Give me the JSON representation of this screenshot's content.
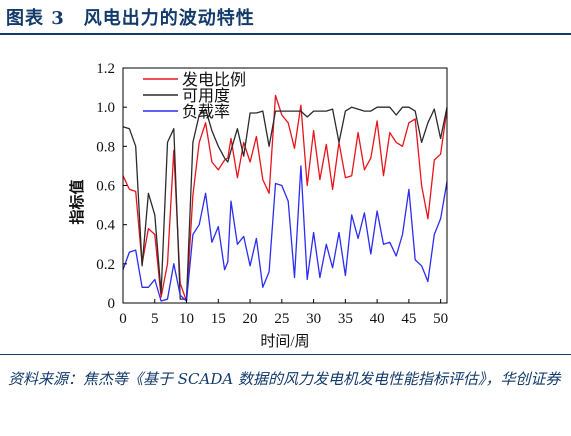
{
  "figure": {
    "title": "图表 3　风电出力的波动特性",
    "source": "资料来源：焦杰等《基于 SCADA 数据的风力发电机发电性能指标评估》，华创证券"
  },
  "chart_data": {
    "type": "line",
    "xlabel": "时间/周",
    "ylabel": "指标值",
    "xlim": [
      0,
      51
    ],
    "ylim": [
      0,
      1.2
    ],
    "xticks": [
      0,
      5,
      10,
      15,
      20,
      25,
      30,
      35,
      40,
      45,
      50
    ],
    "yticks": [
      "0",
      "0.2",
      "0.4",
      "0.6",
      "0.8",
      "1.0",
      "1.2"
    ],
    "grid": false,
    "legend_position": "top-left",
    "x": [
      0,
      1,
      2,
      3,
      4,
      5,
      6,
      7,
      8,
      9,
      10,
      11,
      12,
      13,
      14,
      15,
      16,
      16.5,
      17,
      18,
      19,
      20,
      21,
      22,
      23,
      24,
      25,
      26,
      27,
      28,
      29,
      30,
      31,
      32,
      33,
      34,
      35,
      36,
      37,
      38,
      39,
      40,
      41,
      42,
      43,
      44,
      45,
      46,
      47,
      48,
      49,
      50,
      51
    ],
    "series": [
      {
        "name": "发电比例",
        "color": "#e8141b",
        "values": [
          0.65,
          0.58,
          0.57,
          0.2,
          0.38,
          0.35,
          0.03,
          0.2,
          0.78,
          0.1,
          0.01,
          0.55,
          0.82,
          0.92,
          0.72,
          0.68,
          0.73,
          0.74,
          0.84,
          0.64,
          0.82,
          0.72,
          0.85,
          0.63,
          0.56,
          1.06,
          0.96,
          0.92,
          0.79,
          1.01,
          0.6,
          0.88,
          0.63,
          0.81,
          0.58,
          0.82,
          0.64,
          0.65,
          0.87,
          0.68,
          0.74,
          0.93,
          0.65,
          0.87,
          0.82,
          0.8,
          0.92,
          0.94,
          0.6,
          0.43,
          0.73,
          0.76,
          0.99
        ]
      },
      {
        "name": "可用度",
        "color": "#2b2b2b",
        "values": [
          0.9,
          0.89,
          0.8,
          0.19,
          0.56,
          0.45,
          0.05,
          0.82,
          0.89,
          0.02,
          0.02,
          0.82,
          0.96,
          0.99,
          0.88,
          0.8,
          0.74,
          0.72,
          0.78,
          0.89,
          0.75,
          0.97,
          0.97,
          0.98,
          0.8,
          0.98,
          0.98,
          0.98,
          0.98,
          0.98,
          0.95,
          0.98,
          0.98,
          0.98,
          0.99,
          0.82,
          0.98,
          1.0,
          0.99,
          0.98,
          0.98,
          1.0,
          1.0,
          1.0,
          0.96,
          1.0,
          1.0,
          0.98,
          0.82,
          0.92,
          0.99,
          0.84,
          1.0
        ]
      },
      {
        "name": "负载率",
        "color": "#2c2cf4",
        "values": [
          0.17,
          0.26,
          0.27,
          0.08,
          0.08,
          0.12,
          0.01,
          0.02,
          0.2,
          0.04,
          0.01,
          0.35,
          0.4,
          0.56,
          0.31,
          0.39,
          0.17,
          0.21,
          0.52,
          0.3,
          0.34,
          0.19,
          0.33,
          0.08,
          0.16,
          0.61,
          0.6,
          0.52,
          0.13,
          0.7,
          0.12,
          0.36,
          0.13,
          0.3,
          0.18,
          0.36,
          0.14,
          0.45,
          0.33,
          0.46,
          0.25,
          0.47,
          0.3,
          0.31,
          0.24,
          0.35,
          0.58,
          0.22,
          0.19,
          0.11,
          0.35,
          0.43,
          0.62
        ]
      }
    ]
  }
}
